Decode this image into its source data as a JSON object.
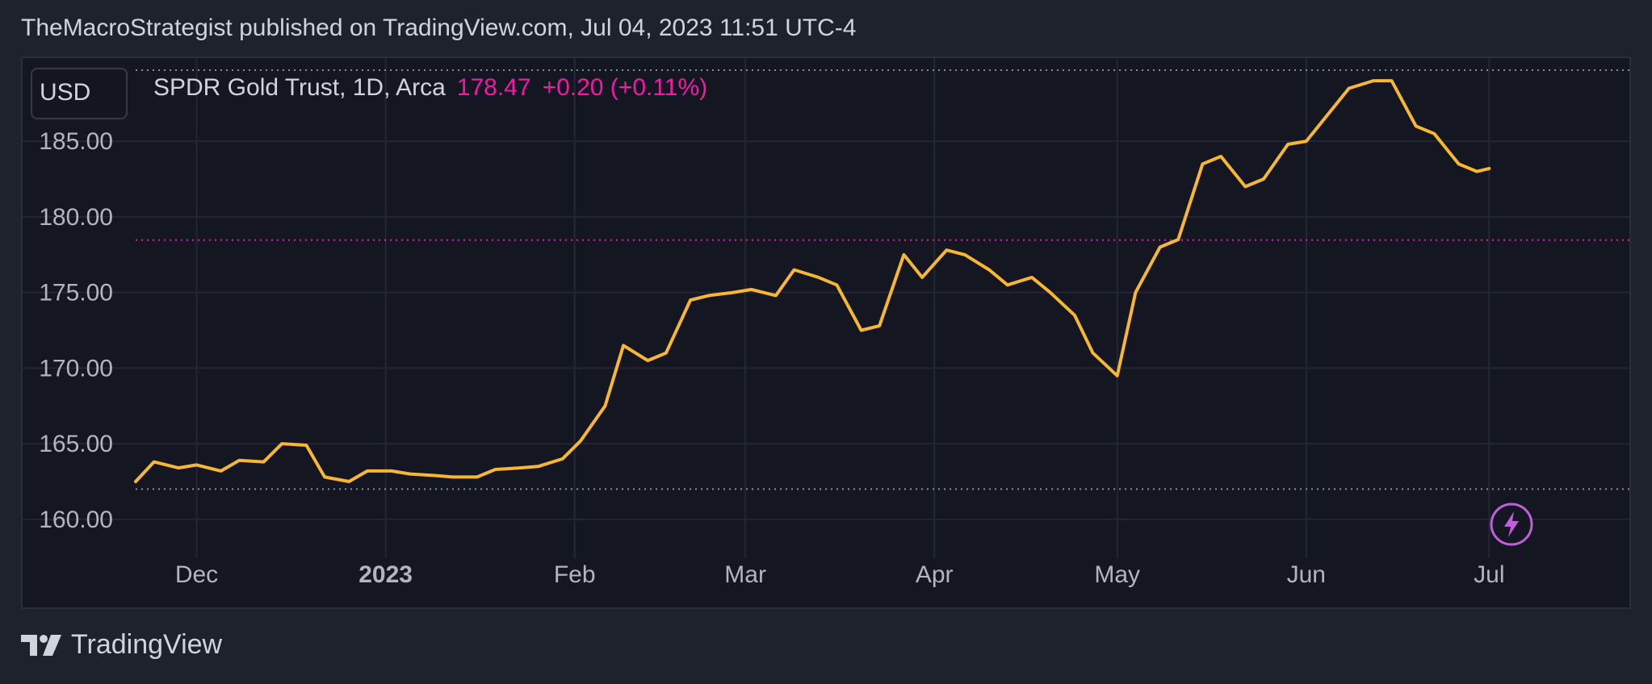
{
  "header": {
    "attribution": "TheMacroStrategist published on TradingView.com, Jul 04, 2023 11:51 UTC-4"
  },
  "toolbar": {
    "currency_label": "USD"
  },
  "legend": {
    "symbol": "SPDR Gold Trust, 1D, Arca",
    "last_price": "178.47",
    "change": "+0.20 (+0.11%)"
  },
  "footer": {
    "brand": "TradingView"
  },
  "colors": {
    "background": "#141722",
    "grid": "#232733",
    "gold_series": "#f7b733",
    "white_series": "#ffffff",
    "violet_series": "#c77dff",
    "magenta_series": "#f01aa6"
  },
  "chart_data": {
    "type": "line",
    "ylim": [
      158.5,
      190.5
    ],
    "y_ticks": [
      160,
      165,
      170,
      175,
      180,
      185
    ],
    "y_tick_labels": [
      "160.00",
      "165.00",
      "170.00",
      "175.00",
      "180.00",
      "185.00"
    ],
    "x_range": [
      "2022-11-21",
      "2023-07-24"
    ],
    "x_ticks": [
      {
        "date": "2022-12-01",
        "label": "Dec",
        "bold": false
      },
      {
        "date": "2023-01-01",
        "label": "2023",
        "bold": true
      },
      {
        "date": "2023-02-01",
        "label": "Feb",
        "bold": false
      },
      {
        "date": "2023-03-01",
        "label": "Mar",
        "bold": false
      },
      {
        "date": "2023-04-01",
        "label": "Apr",
        "bold": false
      },
      {
        "date": "2023-05-01",
        "label": "May",
        "bold": false
      },
      {
        "date": "2023-06-01",
        "label": "Jun",
        "bold": false
      },
      {
        "date": "2023-07-01",
        "label": "Jul",
        "bold": false
      }
    ],
    "reference_lines": [
      {
        "y": 178.47,
        "style": "dotted",
        "color": "#f01aa6"
      },
      {
        "y": 189.7,
        "style": "dotted",
        "color": "#8a8e99"
      },
      {
        "y": 162.0,
        "style": "dotted",
        "color": "#8a8e99"
      }
    ],
    "series": [
      {
        "color": "#f7b733",
        "points": [
          [
            "2022-11-21",
            162.5
          ],
          [
            "2022-11-24",
            163.8
          ],
          [
            "2022-11-28",
            163.4
          ],
          [
            "2022-12-01",
            163.6
          ],
          [
            "2022-12-05",
            163.2
          ],
          [
            "2022-12-08",
            163.9
          ],
          [
            "2022-12-12",
            163.8
          ],
          [
            "2022-12-15",
            165.0
          ],
          [
            "2022-12-19",
            164.9
          ],
          [
            "2022-12-22",
            162.8
          ],
          [
            "2022-12-26",
            162.5
          ],
          [
            "2022-12-29",
            163.2
          ],
          [
            "2023-01-02",
            163.2
          ],
          [
            "2023-01-05",
            163.0
          ],
          [
            "2023-01-09",
            162.9
          ],
          [
            "2023-01-12",
            162.8
          ],
          [
            "2023-01-16",
            162.8
          ],
          [
            "2023-01-19",
            163.3
          ],
          [
            "2023-01-23",
            163.4
          ],
          [
            "2023-01-26",
            163.5
          ],
          [
            "2023-01-30",
            164.0
          ],
          [
            "2023-02-02",
            165.2
          ],
          [
            "2023-02-06",
            167.5
          ],
          [
            "2023-02-09",
            171.5
          ],
          [
            "2023-02-13",
            170.5
          ],
          [
            "2023-02-16",
            171.0
          ],
          [
            "2023-02-20",
            174.5
          ],
          [
            "2023-02-23",
            174.8
          ],
          [
            "2023-02-27",
            175.0
          ],
          [
            "2023-03-02",
            175.2
          ],
          [
            "2023-03-06",
            174.8
          ],
          [
            "2023-03-09",
            176.5
          ],
          [
            "2023-03-13",
            176.0
          ],
          [
            "2023-03-16",
            175.5
          ],
          [
            "2023-03-20",
            172.5
          ],
          [
            "2023-03-23",
            172.8
          ],
          [
            "2023-03-27",
            177.5
          ],
          [
            "2023-03-30",
            176.0
          ],
          [
            "2023-04-03",
            177.8
          ],
          [
            "2023-04-06",
            177.5
          ],
          [
            "2023-04-10",
            176.5
          ],
          [
            "2023-04-13",
            175.5
          ],
          [
            "2023-04-17",
            176.0
          ],
          [
            "2023-04-20",
            175.0
          ],
          [
            "2023-04-24",
            173.5
          ],
          [
            "2023-04-27",
            171.0
          ],
          [
            "2023-05-01",
            169.5
          ],
          [
            "2023-05-04",
            175.0
          ],
          [
            "2023-05-08",
            178.0
          ],
          [
            "2023-05-11",
            178.5
          ],
          [
            "2023-05-15",
            183.5
          ],
          [
            "2023-05-18",
            184.0
          ],
          [
            "2023-05-22",
            182.0
          ],
          [
            "2023-05-25",
            182.5
          ],
          [
            "2023-05-29",
            184.8
          ],
          [
            "2023-06-01",
            185.0
          ],
          [
            "2023-06-05",
            187.0
          ],
          [
            "2023-06-08",
            188.5
          ],
          [
            "2023-06-12",
            189.0
          ],
          [
            "2023-06-15",
            189.0
          ],
          [
            "2023-06-19",
            186.0
          ],
          [
            "2023-06-22",
            185.5
          ],
          [
            "2023-06-26",
            183.5
          ],
          [
            "2023-06-29",
            183.0
          ],
          [
            "2023-07-01",
            183.2
          ]
        ]
      }
    ],
    "note_series_order": "gold, white, violet, magenta"
  }
}
